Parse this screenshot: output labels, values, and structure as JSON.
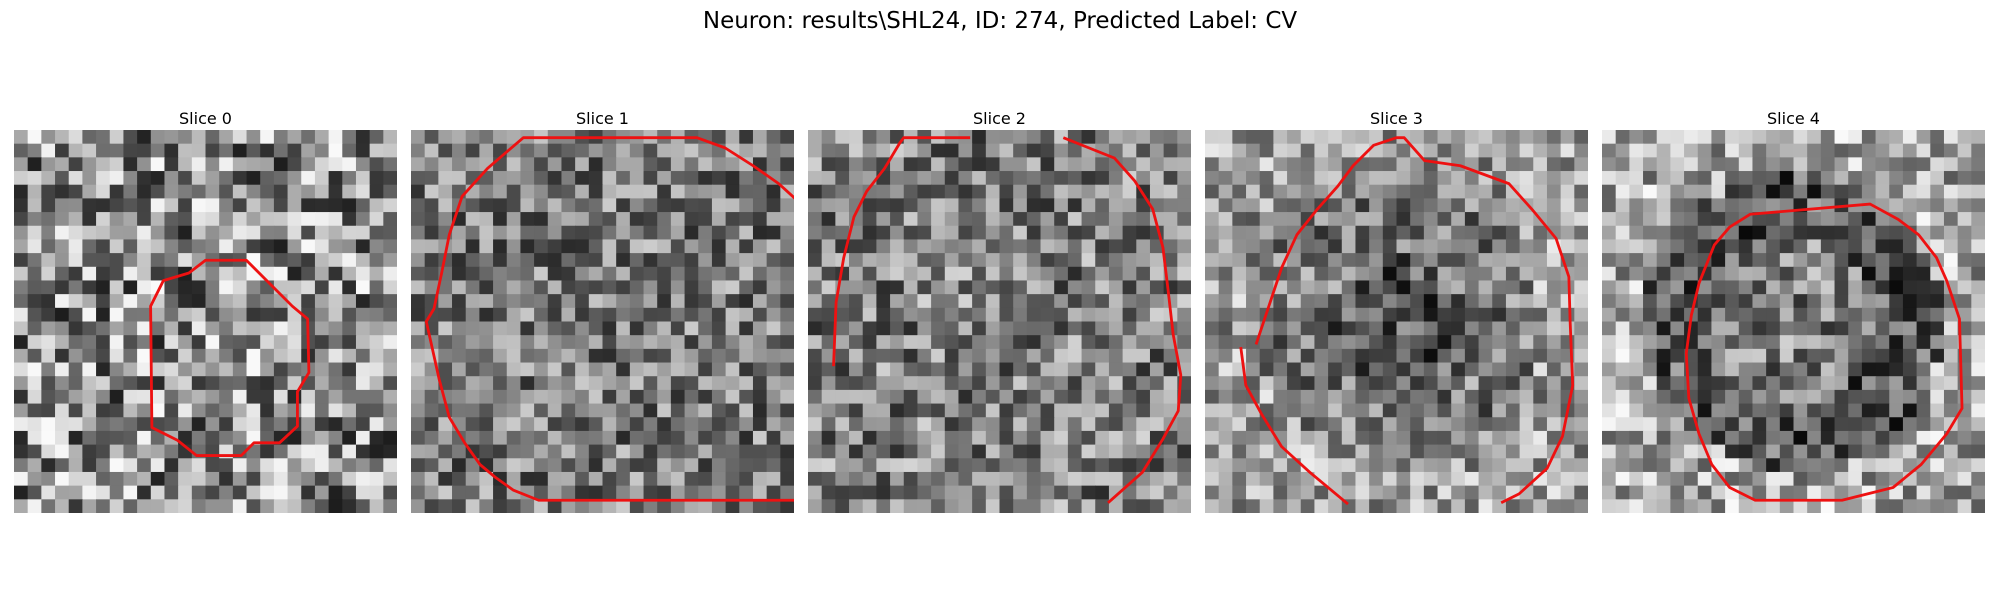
{
  "figure": {
    "title": "Neuron: results\\SHL24, ID: 274, Predicted Label: CV"
  },
  "panels": [
    {
      "title": "Slice 0",
      "image": "noisy-grayscale-slice-with-small-red-contour"
    },
    {
      "title": "Slice 1",
      "image": "noisy-grayscale-slice-with-large-red-contour"
    },
    {
      "title": "Slice 2",
      "image": "noisy-grayscale-slice-with-large-red-contour"
    },
    {
      "title": "Slice 3",
      "image": "grayscale-slice-with-dark-cell-and-red-contour"
    },
    {
      "title": "Slice 4",
      "image": "grayscale-slice-with-ring-and-red-contour"
    }
  ],
  "colors": {
    "contour": "#ee1111",
    "background": "#ffffff"
  }
}
